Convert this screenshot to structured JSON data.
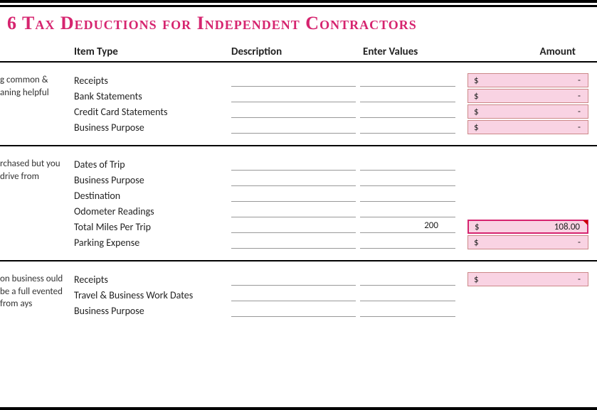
{
  "colors": {
    "title": "#d6246f",
    "amount_bg": "#f9d3e3",
    "amount_border": "#c88",
    "amount_highlight_border": "#d6246f",
    "line": "#999999",
    "text": "#222222",
    "rule": "#000000"
  },
  "title": "6 Tax Deductions for Independent Contractors",
  "headers": {
    "item": "Item Type",
    "desc": "Description",
    "values": "Enter Values",
    "amount": "Amount"
  },
  "sections": [
    {
      "side": "g common & aning helpful",
      "rows": [
        {
          "item": "Receipts",
          "desc": "",
          "val": "",
          "amount": "-",
          "show_amount": true
        },
        {
          "item": "Bank Statements",
          "desc": "",
          "val": "",
          "amount": "-",
          "show_amount": true
        },
        {
          "item": "Credit Card Statements",
          "desc": "",
          "val": "",
          "amount": "-",
          "show_amount": true
        },
        {
          "item": "Business Purpose",
          "desc": "",
          "val": "",
          "amount": "-",
          "show_amount": true
        }
      ]
    },
    {
      "side": "rchased but you drive from",
      "rows": [
        {
          "item": "Dates of Trip",
          "desc": "",
          "val": "",
          "show_amount": false
        },
        {
          "item": "Business Purpose",
          "desc": "",
          "val": "",
          "show_amount": false
        },
        {
          "item": "Destination",
          "desc": "",
          "val": "",
          "show_amount": false
        },
        {
          "item": "Odometer Readings",
          "desc": "",
          "val": "",
          "show_amount": false
        },
        {
          "item": "Total Miles Per Trip",
          "desc": "",
          "val": "200",
          "amount": "108.00",
          "show_amount": true,
          "highlight": true,
          "comment_marker": true
        },
        {
          "item": "Parking Expense",
          "desc": "",
          "val": "",
          "amount": "-",
          "show_amount": true
        }
      ]
    },
    {
      "side": "on business ould be a full evented from ays",
      "rows": [
        {
          "item": "Receipts",
          "desc": "",
          "val": "",
          "amount": "-",
          "show_amount": true
        },
        {
          "item": "Travel & Business Work Dates",
          "desc": "",
          "val": "",
          "show_amount": false
        },
        {
          "item": "Business Purpose",
          "desc": "",
          "val": "",
          "show_amount": false
        }
      ]
    }
  ]
}
